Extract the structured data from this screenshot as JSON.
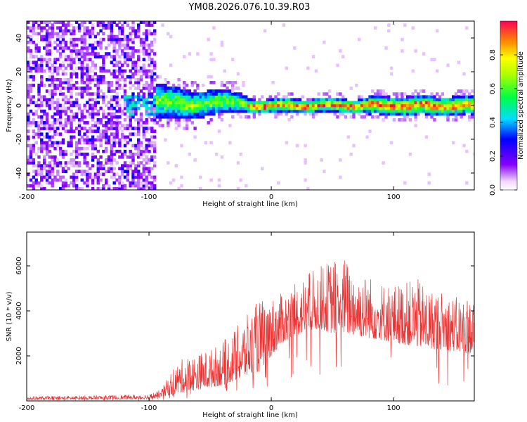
{
  "title": "YM08.2026.076.10.39.R03",
  "chart_data": [
    {
      "type": "heatmap",
      "title": "YM08.2026.076.10.39.R03",
      "xlabel": "Height of straight line (km)",
      "ylabel": "Frequency (Hz)",
      "xlim": [
        -200,
        166
      ],
      "ylim": [
        -50,
        50
      ],
      "xticks": [
        "-200",
        "-100",
        "0",
        "100"
      ],
      "xtick_values": [
        -200,
        -100,
        0,
        100
      ],
      "yticks": [
        "-40",
        "-20",
        "0",
        "20",
        "40"
      ],
      "ytick_values": [
        -40,
        -20,
        0,
        20,
        40
      ],
      "colorbar": {
        "label": "Normalized spectral amplitude",
        "range": [
          0,
          1
        ],
        "ticks": [
          "0.0",
          "0.2",
          "0.4",
          "0.6",
          "0.8"
        ],
        "tick_values": [
          0.0,
          0.2,
          0.4,
          0.6,
          0.8
        ]
      },
      "description_regions": [
        {
          "x_range": [
            -200,
            -95
          ],
          "freq_range": [
            -50,
            50
          ],
          "amplitude": 0.1,
          "pattern": "scattered broadband noise"
        },
        {
          "x_range": [
            -120,
            -20
          ],
          "freq_range": [
            -6,
            8
          ],
          "amplitude": 0.35,
          "pattern": "widening signal band"
        },
        {
          "x_range": [
            -20,
            166
          ],
          "freq_range": [
            -3,
            3
          ],
          "amplitude": 0.9,
          "pattern": "narrow strong band near 0 Hz"
        }
      ]
    },
    {
      "type": "line",
      "xlabel": "Height of straight line (km)",
      "ylabel": "SNR (10 * v/v)",
      "xlim": [
        -200,
        166
      ],
      "ylim": [
        0,
        7500
      ],
      "xticks": [
        "-200",
        "-100",
        "0",
        "100"
      ],
      "xtick_values": [
        -200,
        -100,
        0,
        100
      ],
      "yticks": [
        "2000",
        "4000",
        "6000"
      ],
      "ytick_values": [
        2000,
        4000,
        6000
      ],
      "color": "#ee3333",
      "envelope": {
        "x": [
          -200,
          -160,
          -120,
          -100,
          -90,
          -80,
          -70,
          -60,
          -50,
          -40,
          -30,
          -20,
          -10,
          0,
          10,
          20,
          30,
          40,
          50,
          60,
          70,
          80,
          90,
          100,
          110,
          120,
          130,
          140,
          150,
          160,
          166
        ],
        "base": [
          50,
          60,
          70,
          80,
          150,
          300,
          400,
          500,
          600,
          700,
          900,
          1100,
          1300,
          2000,
          2600,
          2900,
          3100,
          3200,
          3000,
          3000,
          2900,
          2800,
          2700,
          2600,
          2500,
          2400,
          2300,
          2300,
          2200,
          2100,
          2100
        ],
        "top": [
          200,
          230,
          260,
          300,
          500,
          1500,
          2000,
          2100,
          2300,
          2600,
          3200,
          3800,
          4500,
          4600,
          4800,
          5200,
          5700,
          6000,
          6300,
          6400,
          5800,
          5600,
          5300,
          5200,
          5300,
          5400,
          5000,
          4900,
          4600,
          4700,
          4600
        ]
      }
    }
  ]
}
